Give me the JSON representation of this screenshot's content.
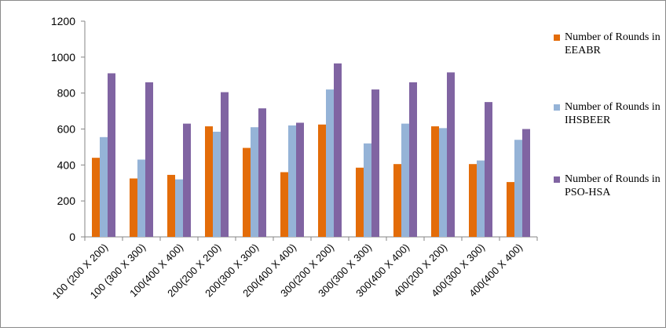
{
  "chart_data": {
    "type": "bar",
    "title": "",
    "xlabel": "",
    "ylabel": "",
    "ylim": [
      0,
      1200
    ],
    "yticks": [
      0,
      200,
      400,
      600,
      800,
      1000,
      1200
    ],
    "grid": false,
    "legend_position": "right",
    "categories": [
      "100 (200 X 200)",
      "100 (300 X 300)",
      "100(400 X 400)",
      "200(200 X 200)",
      "200(300 X 300)",
      "200(400 X 400)",
      "300(200 X 200)",
      "300(300 X 300)",
      "300(400 X 400)",
      "400(200 X 200)",
      "400(300 X 300)",
      "400(400 X 400)"
    ],
    "series": [
      {
        "name": "Number of Rounds in EEABR",
        "color": "#e36c09",
        "values": [
          440,
          325,
          345,
          615,
          495,
          360,
          625,
          385,
          405,
          615,
          405,
          305
        ]
      },
      {
        "name": "Number of Rounds in IHSBEER",
        "color": "#95b3d7",
        "values": [
          555,
          430,
          320,
          585,
          610,
          620,
          820,
          520,
          630,
          605,
          425,
          540
        ]
      },
      {
        "name": "Number of Rounds in PSO-HSA",
        "color": "#8064a2",
        "values": [
          910,
          860,
          630,
          805,
          715,
          635,
          965,
          820,
          860,
          915,
          750,
          600
        ]
      }
    ]
  }
}
